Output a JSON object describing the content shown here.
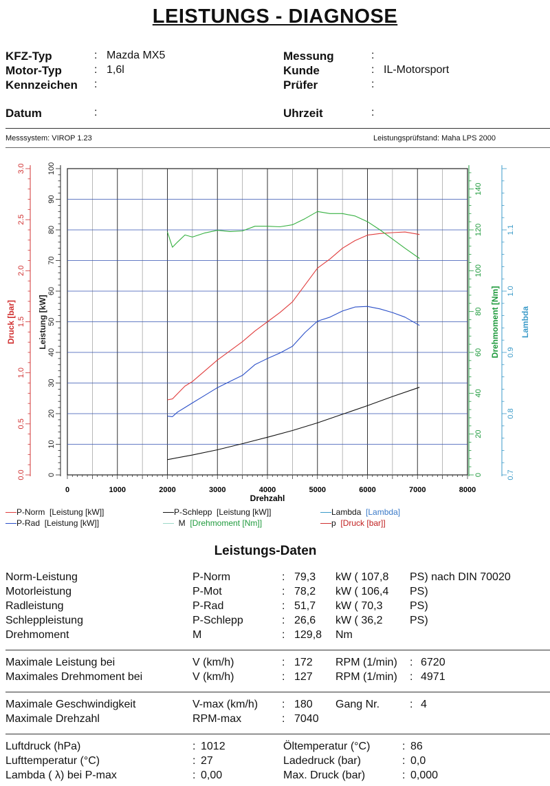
{
  "title": "LEISTUNGS - DIAGNOSE",
  "header": {
    "kfz_typ_label": "KFZ-Typ",
    "kfz_typ_value": "Mazda MX5",
    "motor_typ_label": "Motor-Typ",
    "motor_typ_value": "1,6l",
    "kennzeichen_label": "Kennzeichen",
    "kennzeichen_value": "",
    "datum_label": "Datum",
    "datum_value": "",
    "messung_label": "Messung",
    "messung_value": "",
    "kunde_label": "Kunde",
    "kunde_value": "IL-Motorsport",
    "pruefer_label": "Prüfer",
    "pruefer_value": "",
    "uhrzeit_label": "Uhrzeit",
    "uhrzeit_value": "",
    "colon": ":",
    "messsystem": "Messsystem: VIROP 1.23",
    "pruefstand": "Leistungsprüfstand: Maha LPS 2000"
  },
  "colors": {
    "druck": "#d03030",
    "leistung": "#222222",
    "drehmoment": "#1e9a3c",
    "lambda": "#3a9ac8",
    "p_norm": "#e03c3c",
    "p_rad": "#2a4fc8",
    "p_schlepp": "#111111",
    "m": "#35b040",
    "grid_h": "#3050b0"
  },
  "chart_data": {
    "type": "line",
    "xlabel": "Drehzahl",
    "x_ticks": [
      "0",
      "1000",
      "2000",
      "3000",
      "4000",
      "5000",
      "6000",
      "7000",
      "8000"
    ],
    "xlim": [
      0,
      8000
    ],
    "axes": {
      "druck": {
        "label": "Druck [bar]",
        "range": [
          0,
          3.0
        ],
        "ticks": [
          "0.0",
          "0.5",
          "1.0",
          "1.5",
          "2.0",
          "2.5",
          "3.0"
        ]
      },
      "leistung": {
        "label": "Leistung [kW]",
        "range": [
          0,
          100
        ],
        "ticks": [
          "0",
          "10",
          "20",
          "30",
          "40",
          "50",
          "60",
          "70",
          "80",
          "90",
          "100"
        ]
      },
      "drehmoment": {
        "label": "Drehmoment [Nm]",
        "range": [
          0,
          150
        ],
        "ticks": [
          "0",
          "20",
          "40",
          "60",
          "80",
          "100",
          "120",
          "140"
        ]
      },
      "lambda": {
        "label": "Lambda",
        "range": [
          0.7,
          1.2
        ],
        "ticks": [
          "0.7",
          "0.8",
          "0.9",
          "1.0",
          "1.1"
        ]
      }
    },
    "series": [
      {
        "name": "P-Norm",
        "axis": "leistung",
        "color": "#e03c3c",
        "x": [
          2000,
          2100,
          2200,
          2350,
          2500,
          2750,
          3000,
          3250,
          3500,
          3750,
          4000,
          4250,
          4500,
          4750,
          5000,
          5250,
          5500,
          5750,
          6000,
          6250,
          6500,
          6750,
          7040
        ],
        "y": [
          24.5,
          24.8,
          26.5,
          29,
          30.5,
          34,
          37.5,
          40.5,
          43.5,
          47,
          50,
          53,
          56.5,
          62,
          67.5,
          70.5,
          74,
          76.5,
          78.3,
          78.8,
          79.1,
          79.3,
          78.5
        ]
      },
      {
        "name": "P-Rad",
        "axis": "leistung",
        "color": "#2a4fc8",
        "x": [
          2000,
          2100,
          2200,
          2350,
          2500,
          2750,
          3000,
          3250,
          3500,
          3750,
          4000,
          4250,
          4500,
          4750,
          5000,
          5250,
          5500,
          5750,
          6000,
          6250,
          6500,
          6750,
          7040
        ],
        "y": [
          19.2,
          19.0,
          20.5,
          22,
          23.5,
          26,
          28.5,
          30.5,
          32.5,
          36,
          38,
          39.8,
          42,
          46.5,
          50.2,
          51.5,
          53.5,
          54.8,
          55.0,
          54.2,
          53,
          51.5,
          48.8
        ]
      },
      {
        "name": "P-Schlepp",
        "axis": "leistung",
        "color": "#111111",
        "x": [
          2000,
          2500,
          3000,
          3500,
          4000,
          4500,
          5000,
          5500,
          6000,
          6500,
          7040
        ],
        "y": [
          5.0,
          6.5,
          8.2,
          10.2,
          12.3,
          14.5,
          17.0,
          19.8,
          22.6,
          25.6,
          28.6
        ]
      },
      {
        "name": "M",
        "axis": "drehmoment",
        "color": "#35b040",
        "x": [
          2000,
          2100,
          2200,
          2350,
          2500,
          2750,
          3000,
          3250,
          3500,
          3750,
          4000,
          4250,
          4500,
          4750,
          5000,
          5250,
          5500,
          5750,
          6000,
          6250,
          6500,
          6750,
          7040
        ],
        "y": [
          119,
          111.5,
          114,
          117.5,
          116.5,
          118.5,
          119.8,
          119.2,
          119.5,
          121.8,
          121.8,
          121.5,
          122.5,
          125.5,
          129.0,
          128.0,
          128.0,
          126.8,
          124.0,
          120.0,
          115.5,
          111.0,
          106.0
        ]
      }
    ],
    "legend": [
      {
        "line_color": "#e03c3c",
        "name": "P-Norm",
        "unit": "[Leistung [kW]]",
        "unit_color": "#111111"
      },
      {
        "line_color": "#111111",
        "name": "P-Schlepp",
        "unit": "[Leistung [kW]]",
        "unit_color": "#111111"
      },
      {
        "line_color": "#3a9ac8",
        "name": "Lambda",
        "unit": "[Lambda]",
        "unit_color": "#3a7ac8"
      },
      {
        "line_color": "#2a4fc8",
        "name": "P-Rad",
        "unit": "[Leistung [kW]]",
        "unit_color": "#111111"
      },
      {
        "line_color": "#9cd8c8",
        "name": "M",
        "unit": "[Drehmoment [Nm]]",
        "unit_color": "#1e9a3c"
      },
      {
        "line_color": "#d03030",
        "name": "p",
        "unit": "[Druck [bar]]",
        "unit_color": "#c02020"
      }
    ]
  },
  "leistungsdaten": {
    "title": "Leistungs-Daten",
    "rows": [
      {
        "label": "Norm-Leistung",
        "key": "P-Norm",
        "value": "79,3",
        "unit": "kW ( 107,8",
        "ps": "PS) nach DIN 70020"
      },
      {
        "label": "Motorleistung",
        "key": "P-Mot",
        "value": "78,2",
        "unit": "kW ( 106,4",
        "ps": "PS)"
      },
      {
        "label": "Radleistung",
        "key": "P-Rad",
        "value": "51,7",
        "unit": "kW ( 70,3",
        "ps": "PS)"
      },
      {
        "label": "Schleppleistung",
        "key": "P-Schlepp",
        "value": "26,6",
        "unit": "kW ( 36,2",
        "ps": "PS)"
      },
      {
        "label": "Drehmoment",
        "key": "M",
        "value": "129,8",
        "unit": "Nm",
        "ps": ""
      }
    ],
    "max_rows": [
      {
        "label": "Maximale Leistung bei",
        "key": "V (km/h)",
        "value": "172",
        "rpm_label": "RPM (1/min)",
        "rpm": "6720"
      },
      {
        "label": "Maximales Drehmoment bei",
        "key": "V (km/h)",
        "value": "127",
        "rpm_label": "RPM (1/min)",
        "rpm": "4971"
      }
    ],
    "vmax_label": "Maximale Geschwindigkeit",
    "vmax_key": "V-max (km/h)",
    "vmax_value": "180",
    "gang_label": "Gang Nr.",
    "gang_value": "4",
    "rpmmax_label": "Maximale Drehzahl",
    "rpmmax_key": "RPM-max",
    "rpmmax_value": "7040",
    "env": [
      {
        "label": "Luftdruck (hPa)",
        "value": "1012",
        "label2": "Öltemperatur (°C)",
        "value2": "86"
      },
      {
        "label": "Lufttemperatur (°C)",
        "value": "27",
        "label2": "Ladedruck (bar)",
        "value2": "0,0"
      },
      {
        "label": "Lambda ( λ) bei P-max",
        "value": "0,00",
        "label2": "Max. Druck (bar)",
        "value2": "0,000"
      }
    ]
  }
}
